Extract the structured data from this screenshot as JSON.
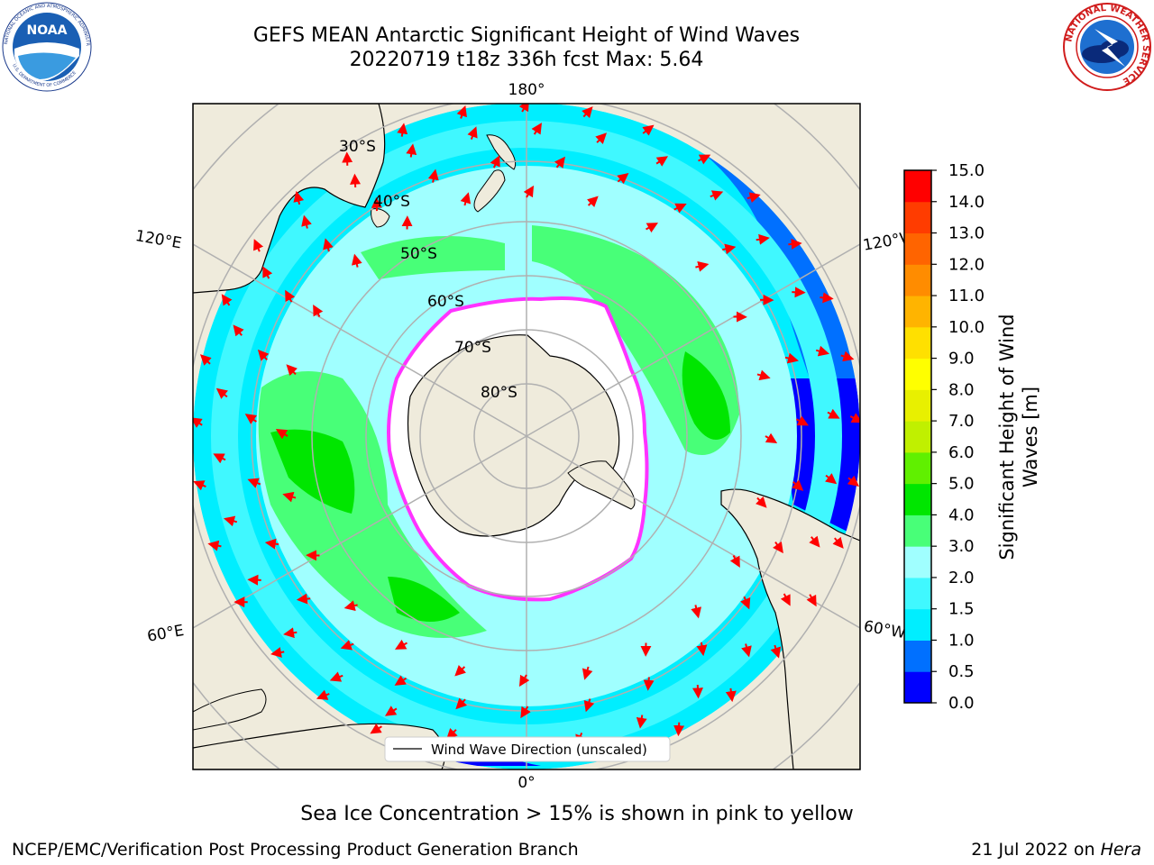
{
  "header": {
    "title_line1": "GEFS MEAN Antarctic Significant Height of Wind Waves",
    "title_line2": "20220719 t18z 336h fcst   Max: 5.64"
  },
  "logos": {
    "left": "noaa-logo",
    "left_text": "NOAA",
    "left_ring_text": "NATIONAL OCEANIC AND ATMOSPHERIC ADMINISTRATION",
    "left_bottom_text": "U.S. DEPARTMENT OF COMMERCE",
    "right": "national-weather-service-logo",
    "right_ring_text": "NATIONAL WEATHER SERVICE"
  },
  "map": {
    "projection": "south-polar-stereographic",
    "longitude_labels": {
      "top": "180°",
      "bottom": "0°",
      "upper_left": "120°E",
      "upper_right": "120°W",
      "lower_left": "60°E",
      "lower_right": "60°W"
    },
    "latitude_labels": [
      "30°S",
      "40°S",
      "50°S",
      "60°S",
      "70°S",
      "80°S"
    ],
    "legend_label": "Wind Wave Direction (unscaled)",
    "colors": {
      "land": "#efebdc",
      "sea_ice": "#ffffff",
      "ice_edge": "#ff33ff",
      "arrows": "#ff0000",
      "grid": "#b0b0b0"
    }
  },
  "colorbar": {
    "label": "Significant Height of Wind Waves [m]",
    "label_line1": "Significant Height of Wind",
    "label_line2": "Waves [m]",
    "ticks": [
      "0.0",
      "0.5",
      "1.0",
      "1.5",
      "2.0",
      "3.0",
      "4.0",
      "5.0",
      "6.0",
      "7.0",
      "8.0",
      "9.0",
      "10.0",
      "11.0",
      "12.0",
      "13.0",
      "14.0",
      "15.0"
    ],
    "colors": [
      "#0000ff",
      "#0070ff",
      "#00eeff",
      "#40f8ff",
      "#a0ffff",
      "#48ff78",
      "#00e600",
      "#60f000",
      "#c0f000",
      "#e8f000",
      "#ffff00",
      "#ffe000",
      "#ffb400",
      "#ff8c00",
      "#ff6400",
      "#ff3c00",
      "#ff0000"
    ]
  },
  "footer": {
    "note": "Sea Ice Concentration > 15% is shown in pink to yellow",
    "left": "NCEP/EMC/Verification Post Processing Product Generation Branch",
    "right_date": "21 Jul 2022 on ",
    "right_machine": "Hera"
  }
}
